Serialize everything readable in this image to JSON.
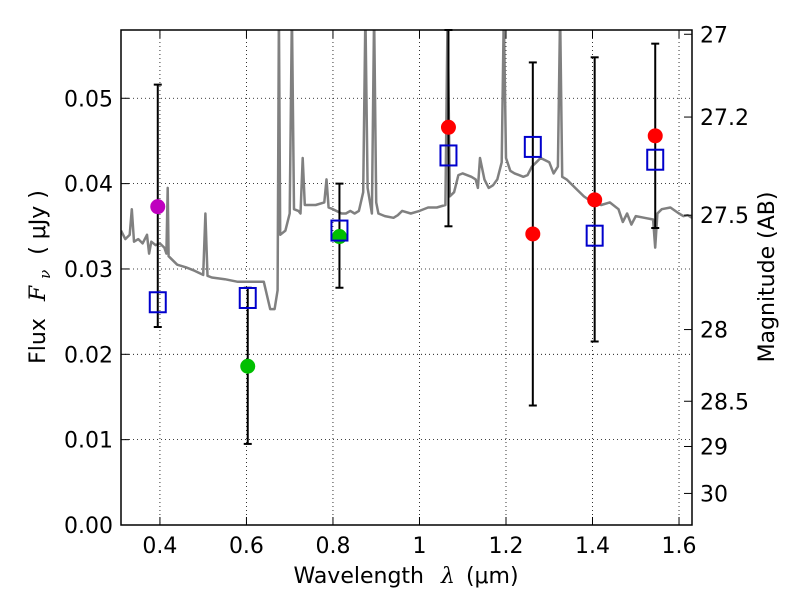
{
  "chart_data": {
    "type": "scatter",
    "title": "",
    "xlabel": {
      "main": "Wavelength",
      "symbol": "λ",
      "unit": "(μm)"
    },
    "ylabel": {
      "main": "Flux",
      "symbol": "F",
      "sub": "ν",
      "unit": "( μJy )"
    },
    "ylabel_right": "Magnitude (AB)",
    "xlim": [
      0.31,
      1.63
    ],
    "ylim": [
      0.0,
      0.058
    ],
    "grid": true,
    "x_ticks": [
      0.4,
      0.6,
      0.8,
      1.0,
      1.2,
      1.4,
      1.6
    ],
    "x_tick_labels": [
      "0.4",
      "0.6",
      "0.8",
      "1",
      "1.2",
      "1.4",
      "1.6"
    ],
    "y_ticks": [
      0.0,
      0.01,
      0.02,
      0.03,
      0.04,
      0.05
    ],
    "y_tick_labels": [
      "0.00",
      "0.01",
      "0.02",
      "0.03",
      "0.04",
      "0.05"
    ],
    "right_ticks": [
      {
        "label": "27",
        "flux": 0.0575
      },
      {
        "label": "27.2",
        "flux": 0.0478
      },
      {
        "label": "27.5",
        "flux": 0.0363
      },
      {
        "label": "28",
        "flux": 0.0229
      },
      {
        "label": "28.5",
        "flux": 0.0145
      },
      {
        "label": "29",
        "flux": 0.0092
      },
      {
        "label": "30",
        "flux": 0.0037
      }
    ],
    "colors": {
      "model": "#808080",
      "squares": "#0000cc",
      "errorbars": "#000000",
      "purple": "#bf00bf",
      "green": "#00bf00",
      "red": "#ff0000"
    },
    "model_spectrum": [
      [
        0.31,
        0.0345
      ],
      [
        0.32,
        0.0335
      ],
      [
        0.33,
        0.034
      ],
      [
        0.335,
        0.037
      ],
      [
        0.34,
        0.0332
      ],
      [
        0.35,
        0.0335
      ],
      [
        0.36,
        0.033
      ],
      [
        0.37,
        0.034
      ],
      [
        0.375,
        0.0318
      ],
      [
        0.38,
        0.0332
      ],
      [
        0.39,
        0.0328
      ],
      [
        0.4,
        0.033
      ],
      [
        0.41,
        0.0325
      ],
      [
        0.415,
        0.0318
      ],
      [
        0.418,
        0.0395
      ],
      [
        0.42,
        0.0315
      ],
      [
        0.44,
        0.0305
      ],
      [
        0.46,
        0.0302
      ],
      [
        0.48,
        0.0298
      ],
      [
        0.5,
        0.0293
      ],
      [
        0.505,
        0.0365
      ],
      [
        0.51,
        0.0292
      ],
      [
        0.52,
        0.029
      ],
      [
        0.55,
        0.0288
      ],
      [
        0.58,
        0.0285
      ],
      [
        0.61,
        0.0285
      ],
      [
        0.64,
        0.0285
      ],
      [
        0.655,
        0.0253
      ],
      [
        0.665,
        0.0253
      ],
      [
        0.672,
        0.0275
      ],
      [
        0.675,
        0.06
      ],
      [
        0.678,
        0.034
      ],
      [
        0.69,
        0.0345
      ],
      [
        0.7,
        0.0365
      ],
      [
        0.705,
        0.06
      ],
      [
        0.71,
        0.037
      ],
      [
        0.72,
        0.0368
      ],
      [
        0.725,
        0.0365
      ],
      [
        0.73,
        0.043
      ],
      [
        0.735,
        0.0375
      ],
      [
        0.76,
        0.0375
      ],
      [
        0.78,
        0.0378
      ],
      [
        0.785,
        0.0405
      ],
      [
        0.79,
        0.0372
      ],
      [
        0.8,
        0.037
      ],
      [
        0.82,
        0.0365
      ],
      [
        0.83,
        0.0365
      ],
      [
        0.84,
        0.0368
      ],
      [
        0.85,
        0.0365
      ],
      [
        0.86,
        0.0368
      ],
      [
        0.87,
        0.039
      ],
      [
        0.875,
        0.06
      ],
      [
        0.88,
        0.0395
      ],
      [
        0.89,
        0.0365
      ],
      [
        0.895,
        0.06
      ],
      [
        0.9,
        0.0378
      ],
      [
        0.905,
        0.0365
      ],
      [
        0.92,
        0.0362
      ],
      [
        0.94,
        0.036
      ],
      [
        0.95,
        0.0363
      ],
      [
        0.96,
        0.0368
      ],
      [
        0.98,
        0.0365
      ],
      [
        1.0,
        0.0368
      ],
      [
        1.02,
        0.0372
      ],
      [
        1.04,
        0.0372
      ],
      [
        1.06,
        0.0375
      ],
      [
        1.065,
        0.06
      ],
      [
        1.07,
        0.0385
      ],
      [
        1.08,
        0.039
      ],
      [
        1.09,
        0.041
      ],
      [
        1.1,
        0.0412
      ],
      [
        1.12,
        0.0408
      ],
      [
        1.13,
        0.0405
      ],
      [
        1.135,
        0.0395
      ],
      [
        1.14,
        0.043
      ],
      [
        1.15,
        0.0405
      ],
      [
        1.16,
        0.0395
      ],
      [
        1.17,
        0.0398
      ],
      [
        1.18,
        0.0405
      ],
      [
        1.19,
        0.0425
      ],
      [
        1.195,
        0.06
      ],
      [
        1.2,
        0.043
      ],
      [
        1.21,
        0.0415
      ],
      [
        1.22,
        0.0412
      ],
      [
        1.23,
        0.041
      ],
      [
        1.24,
        0.0408
      ],
      [
        1.25,
        0.041
      ],
      [
        1.26,
        0.042
      ],
      [
        1.27,
        0.0425
      ],
      [
        1.28,
        0.043
      ],
      [
        1.3,
        0.0425
      ],
      [
        1.31,
        0.0412
      ],
      [
        1.32,
        0.042
      ],
      [
        1.325,
        0.06
      ],
      [
        1.33,
        0.0408
      ],
      [
        1.34,
        0.0405
      ],
      [
        1.36,
        0.0395
      ],
      [
        1.38,
        0.0385
      ],
      [
        1.4,
        0.0378
      ],
      [
        1.42,
        0.0375
      ],
      [
        1.44,
        0.0378
      ],
      [
        1.46,
        0.037
      ],
      [
        1.47,
        0.0355
      ],
      [
        1.48,
        0.0365
      ],
      [
        1.49,
        0.0352
      ],
      [
        1.5,
        0.0362
      ],
      [
        1.52,
        0.036
      ],
      [
        1.54,
        0.0358
      ],
      [
        1.545,
        0.0325
      ],
      [
        1.55,
        0.0365
      ],
      [
        1.56,
        0.037
      ],
      [
        1.58,
        0.0372
      ],
      [
        1.6,
        0.0365
      ],
      [
        1.61,
        0.0362
      ],
      [
        1.62,
        0.0363
      ],
      [
        1.63,
        0.036
      ]
    ],
    "errorbars": [
      {
        "x": 0.395,
        "low": 0.0232,
        "high": 0.0516
      },
      {
        "x": 0.603,
        "low": 0.0095,
        "high": 0.0278
      },
      {
        "x": 0.815,
        "low": 0.0278,
        "high": 0.04
      },
      {
        "x": 1.067,
        "low": 0.035,
        "high": 0.058
      },
      {
        "x": 1.262,
        "low": 0.014,
        "high": 0.0542
      },
      {
        "x": 1.405,
        "low": 0.0215,
        "high": 0.0548
      },
      {
        "x": 1.545,
        "low": 0.0348,
        "high": 0.0564
      }
    ],
    "square_points": [
      {
        "x": 0.395,
        "y": 0.0261
      },
      {
        "x": 0.603,
        "y": 0.0266
      },
      {
        "x": 0.815,
        "y": 0.0345
      },
      {
        "x": 1.067,
        "y": 0.0433
      },
      {
        "x": 1.262,
        "y": 0.0443
      },
      {
        "x": 1.405,
        "y": 0.0339
      },
      {
        "x": 1.545,
        "y": 0.0428
      }
    ],
    "circle_points": [
      {
        "x": 0.395,
        "y": 0.0373,
        "color": "purple"
      },
      {
        "x": 0.603,
        "y": 0.0186,
        "color": "green"
      },
      {
        "x": 0.815,
        "y": 0.0338,
        "color": "green"
      },
      {
        "x": 1.067,
        "y": 0.0466,
        "color": "red"
      },
      {
        "x": 1.262,
        "y": 0.0341,
        "color": "red"
      },
      {
        "x": 1.405,
        "y": 0.0381,
        "color": "red"
      },
      {
        "x": 1.545,
        "y": 0.0456,
        "color": "red"
      }
    ]
  }
}
